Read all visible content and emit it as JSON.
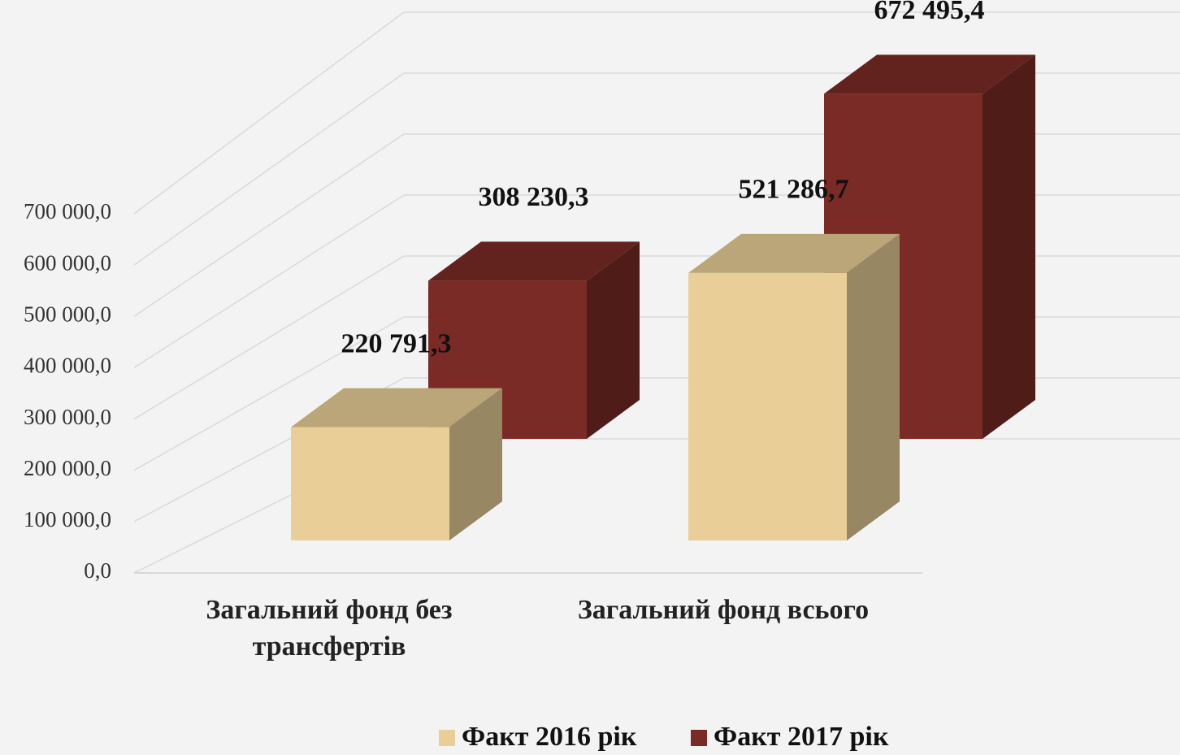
{
  "chart_data": {
    "type": "bar3d",
    "categories": [
      "Загальний фонд без трансфертів",
      "Загальний фонд всього"
    ],
    "series": [
      {
        "name": "Факт 2016 рік",
        "color": "#e9cf97",
        "values": [
          220791.3,
          521286.7
        ],
        "value_labels": [
          "220 791,3",
          "521 286,7"
        ]
      },
      {
        "name": "Факт 2017 рік",
        "color": "#7b2b25",
        "values": [
          308230.3,
          672495.4
        ],
        "value_labels": [
          "308 230,3",
          "672 495,4"
        ]
      }
    ],
    "ylim": [
      0,
      700000
    ],
    "yticks": [
      {
        "value": 0,
        "label": "0,0"
      },
      {
        "value": 100000,
        "label": "100 000,0"
      },
      {
        "value": 200000,
        "label": "200 000,0"
      },
      {
        "value": 300000,
        "label": "300 000,0"
      },
      {
        "value": 400000,
        "label": "400 000,0"
      },
      {
        "value": 500000,
        "label": "500 000,0"
      },
      {
        "value": 600000,
        "label": "600 000,0"
      },
      {
        "value": 700000,
        "label": "700 000,0"
      }
    ],
    "grid": true,
    "legend": "bottom"
  }
}
